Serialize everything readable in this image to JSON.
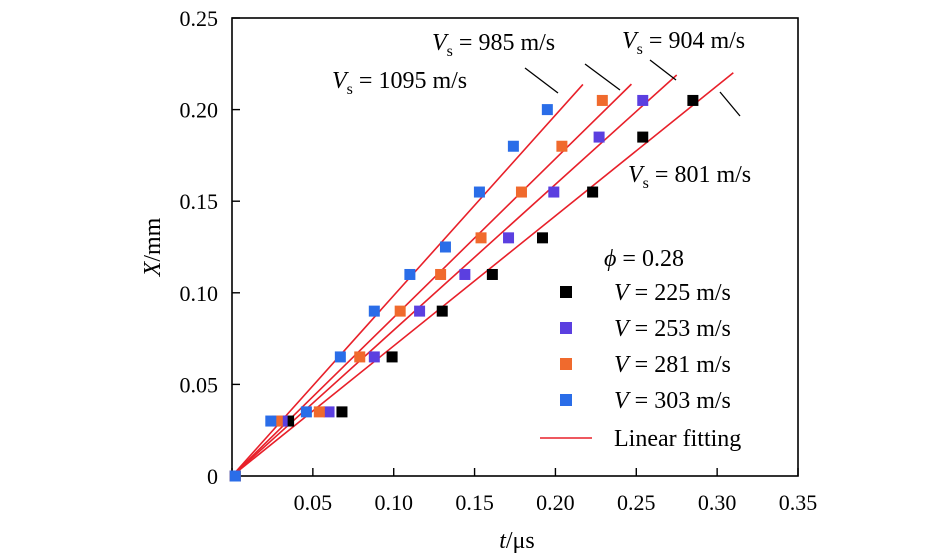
{
  "chart_data": {
    "type": "scatter",
    "title": "",
    "xlabel": "t/μs",
    "xlabel_var": "t",
    "xlabel_unit": "/μs",
    "ylabel": "X/mm",
    "ylabel_var": "X",
    "ylabel_unit": "/mm",
    "xlim": [
      0,
      0.35
    ],
    "ylim": [
      0,
      0.25
    ],
    "x_ticks": [
      0,
      0.05,
      0.1,
      0.15,
      0.2,
      0.25,
      0.3,
      0.35
    ],
    "x_tick_labels": [
      "",
      "0.05",
      "0.10",
      "0.15",
      "0.20",
      "0.25",
      "0.30",
      "0.35"
    ],
    "y_ticks": [
      0,
      0.05,
      0.1,
      0.15,
      0.2,
      0.25
    ],
    "y_tick_labels": [
      "0",
      "0.05",
      "0.10",
      "0.15",
      "0.20",
      "0.25"
    ],
    "grid": false,
    "legend_position": "bottom-right",
    "legend_header": "ϕ = 0.28",
    "fit_color": "#e8202a",
    "fit_label": "Linear fitting",
    "series": [
      {
        "name": "V = 225 m/s",
        "var": "V",
        "value_text": " = 225 m/s",
        "color": "#000000",
        "fit_velocity": "Vs = 801 m/s",
        "fit_value_text": " = 801 m/s",
        "fit_slope": 0.71,
        "fit_x_end": 0.31,
        "x": [
          0.002,
          0.035,
          0.068,
          0.099,
          0.13,
          0.161,
          0.192,
          0.223,
          0.254,
          0.285
        ],
        "y": [
          0.0,
          0.03,
          0.035,
          0.065,
          0.09,
          0.11,
          0.13,
          0.155,
          0.185,
          0.205
        ]
      },
      {
        "name": "V = 253 m/s",
        "var": "V",
        "value_text": " = 253 m/s",
        "color": "#5b3fe0",
        "fit_velocity": "Vs = 904 m/s",
        "fit_value_text": " = 904 m/s",
        "fit_slope": 0.796,
        "fit_x_end": 0.275,
        "x": [
          0.002,
          0.031,
          0.06,
          0.088,
          0.116,
          0.144,
          0.171,
          0.199,
          0.227,
          0.254
        ],
        "y": [
          0.0,
          0.03,
          0.035,
          0.065,
          0.09,
          0.11,
          0.13,
          0.155,
          0.185,
          0.205
        ]
      },
      {
        "name": "V = 281 m/s",
        "var": "V",
        "value_text": " = 281 m/s",
        "color": "#f06a2d",
        "fit_velocity": "Vs = 985 m/s",
        "fit_value_text": " = 985 m/s",
        "fit_slope": 0.866,
        "fit_x_end": 0.247,
        "x": [
          0.002,
          0.028,
          0.054,
          0.079,
          0.104,
          0.129,
          0.154,
          0.179,
          0.204,
          0.229
        ],
        "y": [
          0.0,
          0.03,
          0.035,
          0.065,
          0.09,
          0.11,
          0.13,
          0.155,
          0.18,
          0.205
        ]
      },
      {
        "name": "V = 303 m/s",
        "var": "V",
        "value_text": " = 303 m/s",
        "color": "#2a6de8",
        "fit_velocity": "Vs = 1095 m/s",
        "fit_value_text": " = 1095 m/s",
        "fit_slope": 0.985,
        "fit_x_end": 0.217,
        "x": [
          0.002,
          0.024,
          0.046,
          0.067,
          0.088,
          0.11,
          0.132,
          0.153,
          0.174,
          0.195
        ],
        "y": [
          0.0,
          0.03,
          0.035,
          0.065,
          0.09,
          0.11,
          0.125,
          0.155,
          0.18,
          0.2
        ]
      }
    ]
  }
}
